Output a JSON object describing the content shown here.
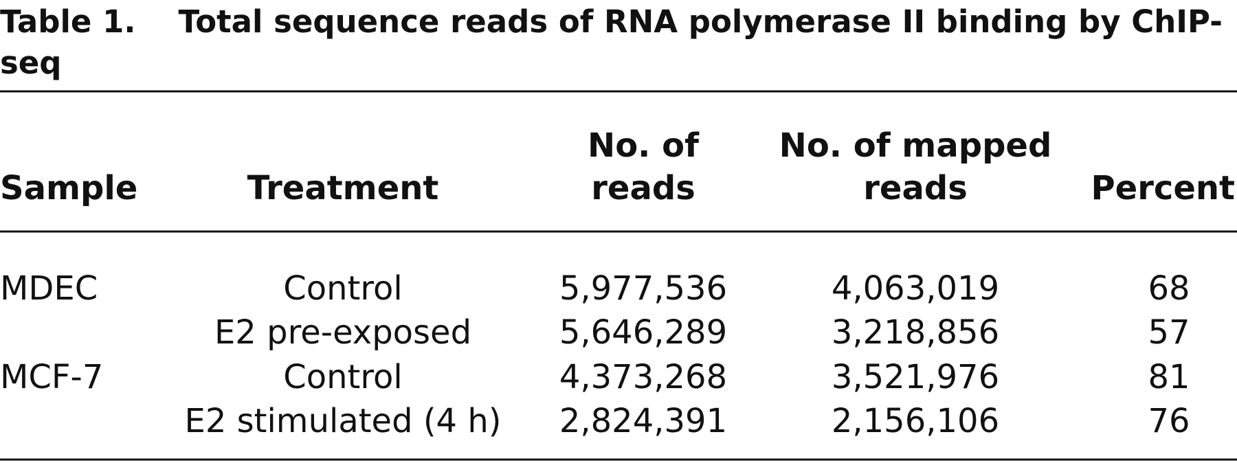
{
  "title": {
    "label": "Table 1.",
    "text": "Total sequence reads of RNA polymerase II binding by ChIP-seq"
  },
  "table": {
    "header": [
      [
        "Sample"
      ],
      [
        "Treatment"
      ],
      [
        "No. of",
        "reads"
      ],
      [
        "No. of mapped",
        "reads"
      ],
      [
        "Percent"
      ]
    ],
    "rows": [
      [
        "MDEC",
        "Control",
        "5,977,536",
        "4,063,019",
        "68"
      ],
      [
        null,
        "E2 pre-exposed",
        "5,646,289",
        "3,218,856",
        "57"
      ],
      [
        "MCF-7",
        "Control",
        "4,373,268",
        "3,521,976",
        "81"
      ],
      [
        null,
        "E2 stimulated (4 h)",
        "2,824,391",
        "2,156,106",
        "76"
      ]
    ]
  }
}
